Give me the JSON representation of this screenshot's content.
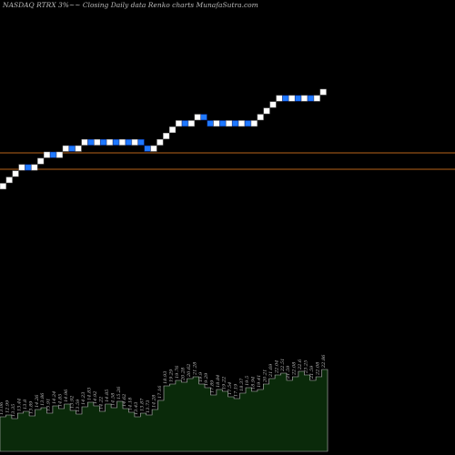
{
  "chart_data": {
    "type": "renko",
    "title": "NASDAQ RTRX  3%~~  Closing Daily data  Renko  charts MunafaSutra.com",
    "colors": {
      "background": "#000000",
      "up_brick": "#ffffff",
      "down_brick": "#1e78ff",
      "down_brick_border": "#0a2a8a",
      "reference_line": "#b8651a",
      "volume_fill": "#0a2a0a",
      "volume_line": "#bbbbbb",
      "label_text": "#bbbbbb"
    },
    "bricks": [
      "U",
      "U",
      "U",
      "U",
      "D",
      "U",
      "U",
      "U",
      "D",
      "U",
      "U",
      "D",
      "U",
      "U",
      "D",
      "U",
      "D",
      "U",
      "D",
      "U",
      "D",
      "U",
      "D",
      "D",
      "U",
      "U",
      "U",
      "U",
      "U",
      "D",
      "U",
      "U",
      "D",
      "D",
      "U",
      "D",
      "U",
      "D",
      "U",
      "D",
      "U",
      "U",
      "U",
      "U",
      "U",
      "D",
      "U",
      "D",
      "U",
      "D",
      "U",
      "U"
    ],
    "reference_line_count": 2,
    "volume_labels": [
      "13.06",
      "12.99",
      "13.35",
      "13.44",
      "13.8",
      "13.89",
      "14.26",
      "13.86",
      "13.91",
      "14.24",
      "14.85",
      "14.96",
      "13.92",
      "13.59",
      "14.23",
      "14.83",
      "14.92",
      "14.22",
      "14.85",
      "14.58",
      "15.26",
      "14.62",
      "14.18",
      "13.43",
      "13.87",
      "13.73",
      "14.28",
      "17.16",
      "18.93",
      "19.29",
      "19.76",
      "20.28",
      "20.62",
      "21.28",
      "19.9",
      "19.29",
      "17.89",
      "18.84",
      "19.22",
      "17.54",
      "17.19",
      "18.37",
      "19.5",
      "18.94",
      "19.41",
      "20.21",
      "21.69",
      "22.04",
      "22.51",
      "21.59",
      "22.08",
      "22.6",
      "23.25",
      "21.59",
      "22.08",
      "22.86"
    ],
    "volume_values": [
      38,
      40,
      36,
      42,
      44,
      39,
      46,
      48,
      42,
      50,
      47,
      52,
      45,
      41,
      49,
      54,
      50,
      44,
      52,
      48,
      55,
      47,
      43,
      38,
      42,
      40,
      46,
      56,
      72,
      74,
      78,
      76,
      80,
      82,
      74,
      70,
      62,
      68,
      66,
      60,
      58,
      64,
      70,
      66,
      68,
      74,
      80,
      84,
      86,
      78,
      82,
      88,
      84,
      78,
      82,
      90
    ]
  }
}
